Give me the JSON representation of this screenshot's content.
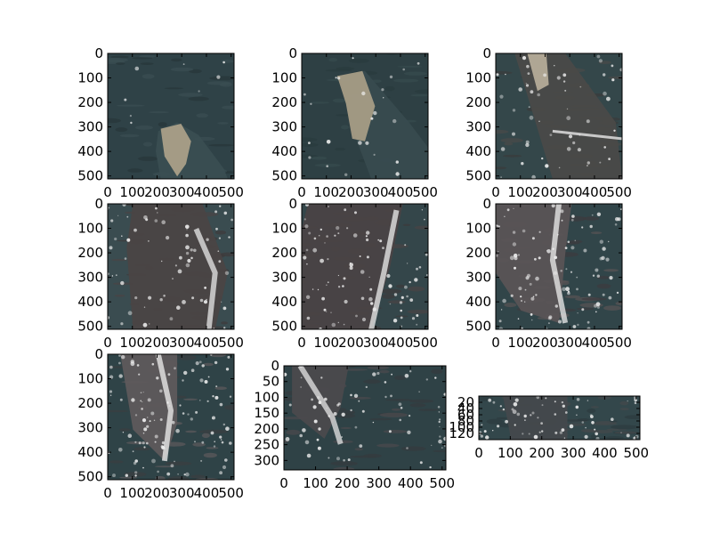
{
  "chart_data": [
    {
      "type": "image",
      "panel": 1,
      "xlim": [
        0,
        512
      ],
      "ylim": [
        512,
        0
      ],
      "xticks": [
        "0",
        "100",
        "200",
        "300",
        "400",
        "500"
      ],
      "yticks": [
        "0",
        "100",
        "200",
        "300",
        "400",
        "500"
      ],
      "colors": {
        "bg": "#2f4247",
        "mid": "#3a4e52",
        "dark": "#263639",
        "feature": "#b7a98e"
      }
    },
    {
      "type": "image",
      "panel": 2,
      "xlim": [
        0,
        512
      ],
      "ylim": [
        512,
        0
      ],
      "xticks": [
        "0",
        "100",
        "200",
        "300",
        "400",
        "500"
      ],
      "yticks": [
        "0",
        "100",
        "200",
        "300",
        "400",
        "500"
      ],
      "colors": {
        "bg": "#2e4044",
        "mid": "#384b4f",
        "dark": "#2a3a3d",
        "feature": "#b3a68c"
      }
    },
    {
      "type": "image",
      "panel": 3,
      "xlim": [
        0,
        512
      ],
      "ylim": [
        512,
        0
      ],
      "xticks": [
        "0",
        "100",
        "200",
        "300",
        "400",
        "500"
      ],
      "yticks": [
        "0",
        "100",
        "200",
        "300",
        "400",
        "500"
      ],
      "colors": {
        "bg": "#34474a",
        "mid": "#4a4a48",
        "dark": "#3b3a3a",
        "feature": "#c2b6a2"
      }
    },
    {
      "type": "image",
      "panel": 4,
      "xlim": [
        0,
        512
      ],
      "ylim": [
        512,
        0
      ],
      "xticks": [
        "0",
        "100",
        "200",
        "300",
        "400",
        "500"
      ],
      "yticks": [
        "0",
        "100",
        "200",
        "300",
        "400",
        "500"
      ],
      "colors": {
        "bg": "#3a4c50",
        "mid": "#4a4444",
        "dark": "#3f3a3b",
        "feature": "#e8e8e8"
      }
    },
    {
      "type": "image",
      "panel": 5,
      "xlim": [
        0,
        512
      ],
      "ylim": [
        512,
        0
      ],
      "xticks": [
        "0",
        "100",
        "200",
        "300",
        "400",
        "500"
      ],
      "yticks": [
        "0",
        "100",
        "200",
        "300",
        "400",
        "500"
      ],
      "colors": {
        "bg": "#34464a",
        "mid": "#4a4345",
        "dark": "#3d393b",
        "feature": "#ececec"
      }
    },
    {
      "type": "image",
      "panel": 6,
      "xlim": [
        0,
        512
      ],
      "ylim": [
        512,
        0
      ],
      "xticks": [
        "0",
        "100",
        "200",
        "300",
        "400",
        "500"
      ],
      "yticks": [
        "0",
        "100",
        "200",
        "300",
        "400",
        "500"
      ],
      "colors": {
        "bg": "#314549",
        "mid": "#5a5456",
        "dark": "#3d3b3e",
        "feature": "#eeeeee"
      }
    },
    {
      "type": "image",
      "panel": 7,
      "xlim": [
        0,
        512
      ],
      "ylim": [
        512,
        0
      ],
      "xticks": [
        "0",
        "100",
        "200",
        "300",
        "400",
        "500"
      ],
      "yticks": [
        "0",
        "100",
        "200",
        "300",
        "400",
        "500"
      ],
      "colors": {
        "bg": "#2f4347",
        "mid": "#5e5a5c",
        "dark": "#3a3d40",
        "feature": "#f0f0f0"
      }
    },
    {
      "type": "image",
      "panel": 8,
      "xlim": [
        0,
        512
      ],
      "ylim": [
        330,
        0
      ],
      "xticks": [
        "0",
        "100",
        "200",
        "300",
        "400",
        "500"
      ],
      "yticks": [
        "0",
        "50",
        "100",
        "150",
        "200",
        "250",
        "300"
      ],
      "colors": {
        "bg": "#2f4246",
        "mid": "#4b4a4d",
        "dark": "#343a3d",
        "feature": "#e6e6e6"
      }
    },
    {
      "type": "image",
      "panel": 9,
      "xlim": [
        0,
        512
      ],
      "ylim": [
        140,
        0
      ],
      "xticks": [
        "0",
        "100",
        "200",
        "300",
        "400",
        "500"
      ],
      "yticks": [
        "20",
        "40",
        "60",
        "80",
        "100",
        "120"
      ],
      "colors": {
        "bg": "#33474b",
        "mid": "#45494c",
        "dark": "#2c3b3e",
        "feature": "#d8d8d8"
      }
    }
  ]
}
